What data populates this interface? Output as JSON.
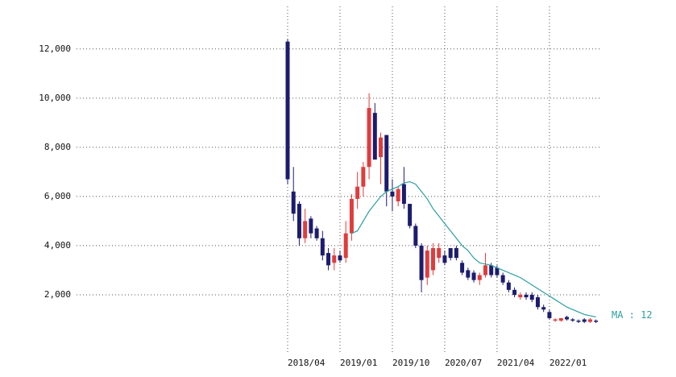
{
  "chart_data": {
    "type": "candlestick",
    "categories": [
      "2018/04",
      null,
      null,
      null,
      null,
      null,
      null,
      null,
      null,
      "2019/01",
      null,
      null,
      null,
      null,
      null,
      null,
      null,
      null,
      "2019/10",
      null,
      null,
      null,
      null,
      null,
      null,
      null,
      null,
      "2020/07",
      null,
      null,
      null,
      null,
      null,
      null,
      null,
      null,
      "2021/04",
      null,
      null,
      null,
      null,
      null,
      null,
      null,
      null,
      "2022/01",
      null,
      null,
      null,
      null,
      null,
      null,
      null,
      null
    ],
    "open": [
      12300,
      6200,
      5700,
      4300,
      5100,
      4700,
      4300,
      3700,
      3300,
      3600,
      3500,
      4500,
      5900,
      6400,
      7200,
      9400,
      7600,
      8500,
      6200,
      5800,
      6500,
      5700,
      4800,
      4000,
      2700,
      3000,
      3500,
      3600,
      3900,
      3900,
      3300,
      3000,
      2900,
      2600,
      2800,
      3200,
      3100,
      2800,
      2500,
      2200,
      1900,
      2000,
      2000,
      1900,
      1500,
      1300,
      950,
      950,
      1100,
      1000,
      950,
      1000,
      900,
      950
    ],
    "high": [
      12400,
      7200,
      5800,
      5500,
      5200,
      4800,
      4600,
      3900,
      3900,
      3800,
      5000,
      6100,
      7000,
      7400,
      10200,
      9800,
      8600,
      8500,
      6700,
      6400,
      7200,
      5700,
      4900,
      4100,
      4000,
      4100,
      4100,
      3800,
      3900,
      4000,
      3400,
      3100,
      3000,
      2900,
      3700,
      3300,
      3200,
      2900,
      2600,
      2300,
      2100,
      2100,
      2100,
      2000,
      1600,
      1400,
      1050,
      1050,
      1150,
      1050,
      1000,
      1050,
      1050,
      1000
    ],
    "low": [
      6500,
      5000,
      4000,
      4100,
      4300,
      4200,
      3400,
      3000,
      3000,
      3300,
      3300,
      4200,
      5500,
      6000,
      6700,
      7500,
      6500,
      5600,
      5400,
      5600,
      5500,
      4700,
      3900,
      2100,
      2400,
      2800,
      3300,
      3200,
      3400,
      3400,
      2800,
      2600,
      2500,
      2400,
      2700,
      2700,
      2700,
      2400,
      2100,
      1900,
      1800,
      1800,
      1700,
      1400,
      1300,
      1000,
      900,
      900,
      950,
      900,
      850,
      850,
      850,
      850
    ],
    "close": [
      6700,
      5300,
      4300,
      5000,
      4500,
      4300,
      3600,
      3200,
      3600,
      3400,
      4500,
      5900,
      6400,
      7200,
      9600,
      7500,
      8400,
      6200,
      6000,
      6300,
      5700,
      4800,
      4000,
      2600,
      3800,
      3900,
      3900,
      3300,
      3500,
      3500,
      2900,
      2700,
      2600,
      2800,
      3200,
      2800,
      2800,
      2500,
      2200,
      2000,
      2000,
      1900,
      1800,
      1500,
      1400,
      1050,
      1000,
      1050,
      1000,
      950,
      900,
      900,
      1000,
      900
    ],
    "up_color": "#e03c3c",
    "down_color": "#1c1c6e",
    "series": [
      {
        "name": "MA : 12",
        "color": "#2e9e9e",
        "values": [
          null,
          null,
          null,
          null,
          null,
          null,
          null,
          null,
          null,
          null,
          null,
          4500,
          4600,
          5000,
          5400,
          5700,
          6000,
          6200,
          6300,
          6400,
          6550,
          6600,
          6500,
          6200,
          5900,
          5500,
          5200,
          4900,
          4600,
          4300,
          4000,
          3800,
          3500,
          3300,
          3250,
          3200,
          3100,
          3000,
          2900,
          2800,
          2700,
          2550,
          2400,
          2250,
          2100,
          1950,
          1800,
          1650,
          1500,
          1400,
          1300,
          1200,
          1150,
          1100
        ]
      }
    ],
    "ylim": [
      0,
      13500
    ],
    "yticks": [
      {
        "value": 2000,
        "label": "2,000"
      },
      {
        "value": 4000,
        "label": "4,000"
      },
      {
        "value": 6000,
        "label": "6,000"
      },
      {
        "value": 8000,
        "label": "8,000"
      },
      {
        "value": 10000,
        "label": "10,000"
      },
      {
        "value": 12000,
        "label": "12,000"
      }
    ],
    "grid": true
  }
}
